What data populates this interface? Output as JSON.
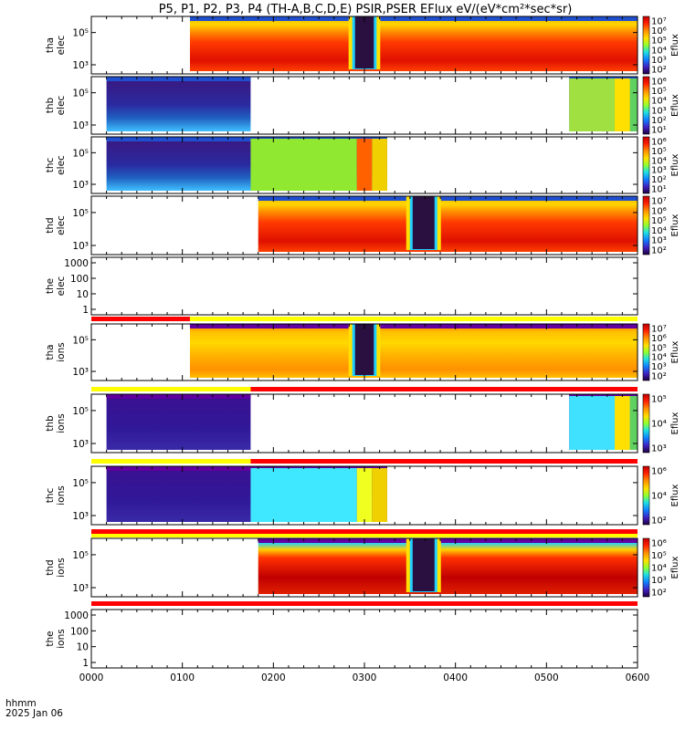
{
  "title": "P5, P1, P2, P3, P4 (TH-A,B,C,D,E) PSIR,PSER EFlux eV/(eV*cm²*sec*sr)",
  "x_axis": {
    "tick_labels": [
      "0000",
      "0100",
      "0200",
      "0300",
      "0400",
      "0500",
      "0600"
    ],
    "label_line1": "hhmm",
    "label_line2": "2025 Jan 06"
  },
  "chart_data": [
    {
      "type": "heatmap",
      "probe": "tha",
      "species": "elec",
      "ylabel": [
        "tha",
        "elec"
      ],
      "y_ticks": [
        "10⁵",
        "10³"
      ],
      "colorbar_ticks": [
        "10⁷",
        "10⁶",
        "10⁵",
        "10⁴",
        "10³",
        "10²"
      ],
      "colorbar_label": "Eflux",
      "data_range_hhmm": [
        "0105",
        "0600"
      ],
      "low_flux_gap_hhmm": [
        "0258",
        "0302"
      ]
    },
    {
      "type": "heatmap",
      "probe": "thb",
      "species": "elec",
      "ylabel": [
        "thb",
        "elec"
      ],
      "y_ticks": [
        "10⁵",
        "10³"
      ],
      "colorbar_ticks": [
        "10⁶",
        "10⁵",
        "10⁴",
        "10³",
        "10²",
        "10¹"
      ],
      "colorbar_label": "Eflux",
      "data_range_hhmm": [
        [
          "0010",
          "0145"
        ],
        [
          "0515",
          "0600"
        ]
      ]
    },
    {
      "type": "heatmap",
      "probe": "thc",
      "species": "elec",
      "ylabel": [
        "thc",
        "elec"
      ],
      "y_ticks": [
        "10⁵",
        "10³"
      ],
      "colorbar_ticks": [
        "10⁶",
        "10⁵",
        "10⁴",
        "10³",
        "10²",
        "10¹"
      ],
      "colorbar_label": "Eflux",
      "data_range_hhmm": [
        "0010",
        "0315"
      ]
    },
    {
      "type": "heatmap",
      "probe": "thd",
      "species": "elec",
      "ylabel": [
        "thd",
        "elec"
      ],
      "y_ticks": [
        "10⁵",
        "10³"
      ],
      "colorbar_ticks": [
        "10⁷",
        "10⁶",
        "10⁵",
        "10⁴",
        "10³",
        "10²"
      ],
      "colorbar_label": "Eflux",
      "data_range_hhmm": [
        "0150",
        "0600"
      ],
      "low_flux_gap_hhmm": [
        "0336",
        "0342"
      ]
    },
    {
      "type": "heatmap",
      "probe": "the",
      "species": "elec",
      "ylabel": [
        "the",
        "elec"
      ],
      "y_ticks": [
        "1000",
        "100",
        "10",
        "1"
      ],
      "no_data": true
    },
    {
      "type": "heatmap",
      "probe": "tha",
      "species": "ions",
      "ylabel": [
        "tha",
        "ions"
      ],
      "y_ticks": [
        "10⁵",
        "10³"
      ],
      "colorbar_ticks": [
        "10⁷",
        "10⁶",
        "10⁵",
        "10⁴",
        "10³",
        "10²"
      ],
      "colorbar_label": "Eflux",
      "data_range_hhmm": [
        "0105",
        "0600"
      ],
      "low_flux_gap_hhmm": [
        "0258",
        "0302"
      ]
    },
    {
      "type": "heatmap",
      "probe": "thb",
      "species": "ions",
      "ylabel": [
        "thb",
        "ions"
      ],
      "y_ticks": [
        "10⁵",
        "10³"
      ],
      "colorbar_ticks": [
        "10⁵",
        "10⁴",
        "10³"
      ],
      "colorbar_label": "Eflux",
      "data_range_hhmm": [
        [
          "0010",
          "0145"
        ],
        [
          "0515",
          "0600"
        ]
      ]
    },
    {
      "type": "heatmap",
      "probe": "thc",
      "species": "ions",
      "ylabel": [
        "thc",
        "ions"
      ],
      "y_ticks": [
        "10⁵",
        "10³"
      ],
      "colorbar_ticks": [
        "10⁶",
        "10⁴",
        "10²"
      ],
      "colorbar_label": "Eflux",
      "data_range_hhmm": [
        "0010",
        "0315"
      ]
    },
    {
      "type": "heatmap",
      "probe": "thd",
      "species": "ions",
      "ylabel": [
        "thd",
        "ions"
      ],
      "y_ticks": [
        "10⁵",
        "10³"
      ],
      "colorbar_ticks": [
        "10⁶",
        "10⁵",
        "10⁴",
        "10³",
        "10²"
      ],
      "colorbar_label": "Eflux",
      "data_range_hhmm": [
        "0150",
        "0600"
      ],
      "low_flux_gap_hhmm": [
        "0336",
        "0342"
      ]
    },
    {
      "type": "heatmap",
      "probe": "the",
      "species": "ions",
      "ylabel": [
        "the",
        "ions"
      ],
      "y_ticks": [
        "1000",
        "100",
        "10",
        "1"
      ],
      "no_data": true
    }
  ],
  "colors": {
    "mode_bar_red": "#ff0000",
    "mode_bar_yellow": "#ffff00",
    "flux_high": "#c80000",
    "flux_mid": "#ffe000",
    "flux_low": "#36d0ff",
    "flux_min": "#3a1a86"
  }
}
